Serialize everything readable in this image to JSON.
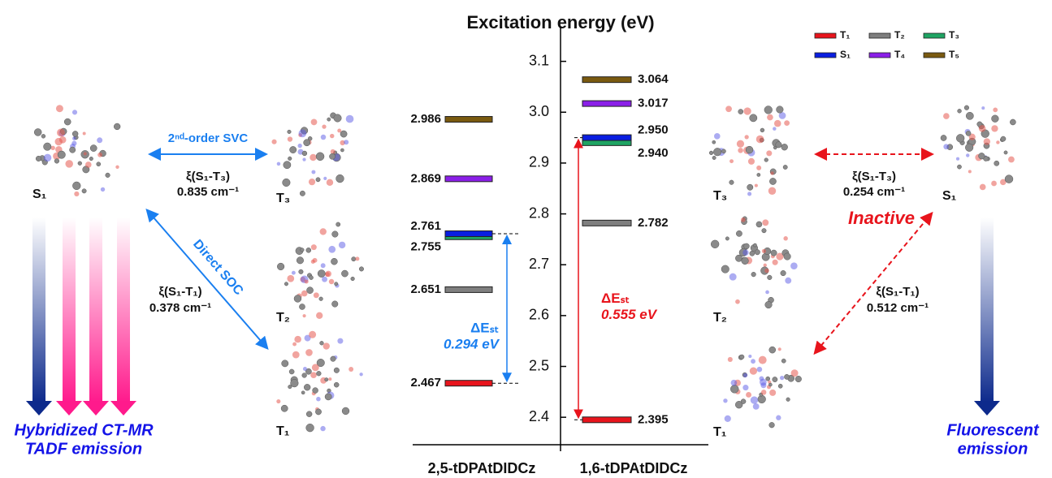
{
  "chart_data": {
    "type": "energy-level",
    "title": "Excitation energy (eV)",
    "categories": [
      "2,5-tDPAtDIDCz",
      "1,6-tDPAtDIDCz"
    ],
    "ylim": [
      2.346,
      3.168
    ],
    "yticks": [
      2.4,
      2.5,
      2.6,
      2.7,
      2.8,
      2.9,
      {
        "value": 3,
        "label": "3.0"
      },
      3.1
    ],
    "series": [
      {
        "name": "T₁",
        "color": "#e8141c",
        "values": [
          2.467,
          2.395
        ],
        "value_labels": [
          "2.467",
          "2.395"
        ]
      },
      {
        "name": "T₂",
        "color": "#7f7f7f",
        "values": [
          2.651,
          2.782
        ],
        "value_labels": [
          "2.651",
          "2.782"
        ]
      },
      {
        "name": "T₃",
        "color": "#1fa463",
        "values": [
          2.755,
          2.94
        ],
        "value_labels": [
          "2.755",
          "2.940"
        ]
      },
      {
        "name": "S₁",
        "color": "#0a1ee0",
        "values": [
          2.761,
          2.95
        ],
        "value_labels": [
          "2.761",
          "2.950"
        ]
      },
      {
        "name": "T₄",
        "color": "#8b1fe8",
        "values": [
          2.869,
          3.017
        ],
        "value_labels": [
          "2.869",
          "3.017"
        ]
      },
      {
        "name": "T₅",
        "color": "#7a5a10",
        "values": [
          2.986,
          3.064
        ],
        "value_labels": [
          "2.986",
          "3.064"
        ]
      }
    ],
    "gaps": [
      {
        "label": "ΔEₛₜ",
        "value_label": "0.294 eV",
        "color": "#1a7ff0"
      },
      {
        "label": "ΔEₛₜ",
        "value_label": "0.555 eV",
        "color": "#e8141c"
      }
    ]
  },
  "left": {
    "s1": "S₁",
    "t3": "T₃",
    "t2": "T₂",
    "t1": "T₁",
    "svc": "2ⁿᵈ-order SVC",
    "xi_t3": "ξ(S₁-T₃)",
    "xi_t3_value": "0.835 cm⁻¹",
    "soc": "Direct SOC",
    "xi_t1": "ξ(S₁-T₁)",
    "xi_t1_value": "0.378 cm⁻¹",
    "emission_1": "Hybridized CT-MR",
    "emission_2": "TADF emission"
  },
  "right": {
    "s1": "S₁",
    "t3": "T₃",
    "t2": "T₂",
    "t1": "T₁",
    "xi_t3": "ξ(S₁-T₃)",
    "xi_t3_value": "0.254 cm⁻¹",
    "inactive": "Inactive",
    "xi_t1": "ξ(S₁-T₁)",
    "xi_t1_value": "0.512 cm⁻¹",
    "emission_1": "Fluorescent",
    "emission_2": "emission"
  }
}
